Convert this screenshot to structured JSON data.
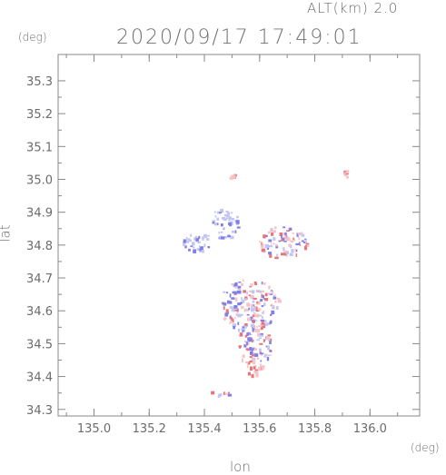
{
  "header": {
    "altitude_label": "ALT(km) 2.0",
    "timestamp": "2020/09/17 17:49:01"
  },
  "axes": {
    "y_unit": "(deg)",
    "x_unit": "(deg)",
    "x_label": "lon",
    "y_label": "lat",
    "x_ticks": [
      "135.0",
      "135.2",
      "135.4",
      "135.6",
      "135.8",
      "136.0"
    ],
    "y_ticks": [
      "34.3",
      "34.4",
      "34.5",
      "34.6",
      "34.7",
      "34.8",
      "34.9",
      "35.0",
      "35.1",
      "35.2",
      "35.3"
    ],
    "x_range": [
      134.87,
      136.18
    ],
    "y_range": [
      34.28,
      35.38
    ]
  },
  "map": {
    "colors": {
      "positive": "#e8747a",
      "negative": "#7f7fe6",
      "light_pos": "#f6c3c6",
      "light_neg": "#c3c6f3",
      "frame": "#888888"
    },
    "echo_regions": [
      {
        "lon": 135.38,
        "lat": 34.81,
        "rx": 0.06,
        "ry": 0.03,
        "tone": "neg"
      },
      {
        "lon": 135.47,
        "lat": 34.87,
        "rx": 0.05,
        "ry": 0.05,
        "tone": "neg"
      },
      {
        "lon": 135.68,
        "lat": 34.81,
        "rx": 0.09,
        "ry": 0.05,
        "tone": "mix"
      },
      {
        "lon": 135.56,
        "lat": 34.62,
        "rx": 0.11,
        "ry": 0.08,
        "tone": "mix"
      },
      {
        "lon": 135.58,
        "lat": 34.5,
        "rx": 0.06,
        "ry": 0.08,
        "tone": "mix"
      },
      {
        "lon": 135.58,
        "lat": 34.43,
        "rx": 0.03,
        "ry": 0.03,
        "tone": "pos"
      },
      {
        "lon": 135.46,
        "lat": 34.35,
        "rx": 0.05,
        "ry": 0.01,
        "tone": "mix"
      },
      {
        "lon": 135.5,
        "lat": 35.01,
        "rx": 0.01,
        "ry": 0.01,
        "tone": "pos"
      },
      {
        "lon": 135.91,
        "lat": 35.02,
        "rx": 0.01,
        "ry": 0.01,
        "tone": "pos"
      }
    ]
  }
}
